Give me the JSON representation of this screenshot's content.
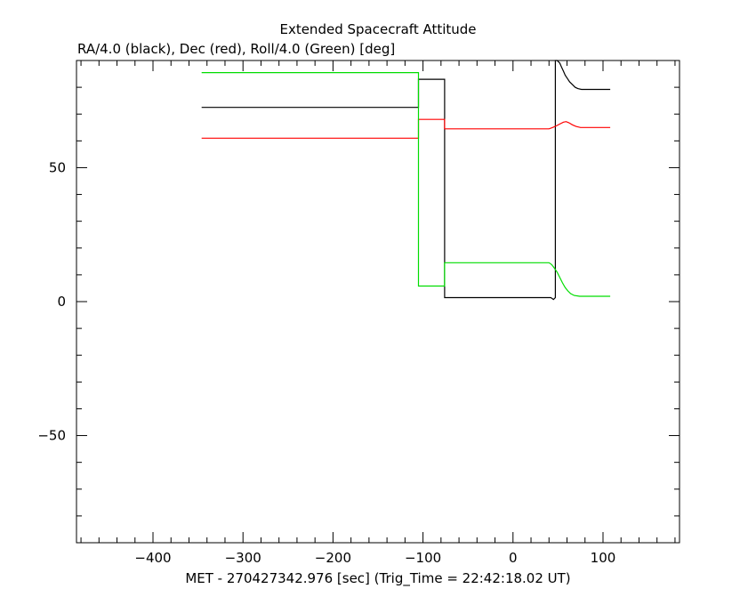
{
  "chart_data": {
    "type": "line",
    "title": "Extended Spacecraft Attitude",
    "subtitle": "RA/4.0 (black), Dec (red), Roll/4.0 (Green) [deg]",
    "xlabel": "MET - 270427342.976 [sec] (Trig_Time = 22:42:18.02 UT)",
    "ylabel": "",
    "xlim": [
      -485,
      185
    ],
    "ylim": [
      -90,
      90
    ],
    "xticks": [
      -400,
      -300,
      -200,
      -100,
      0,
      100
    ],
    "yticks": [
      -50,
      0,
      50
    ],
    "grid": false,
    "series": [
      {
        "color": "#000000",
        "points": [
          [
            -346,
            72.5
          ],
          [
            -105,
            72.5
          ],
          [
            -105,
            83
          ],
          [
            -76,
            83
          ],
          [
            -76,
            1.5
          ],
          [
            42,
            1.5
          ],
          [
            45,
            0.8
          ],
          [
            47,
            1.5
          ],
          [
            47,
            90
          ],
          [
            49,
            90
          ],
          [
            52,
            89
          ],
          [
            54,
            87.5
          ],
          [
            56,
            86
          ],
          [
            58,
            84.5
          ],
          [
            61,
            83
          ],
          [
            63,
            82
          ],
          [
            66,
            81
          ],
          [
            69,
            80
          ],
          [
            72,
            79.5
          ],
          [
            76,
            79.2
          ],
          [
            108,
            79.2
          ]
        ]
      },
      {
        "color": "#ff0000",
        "points": [
          [
            -346,
            61
          ],
          [
            -105,
            61
          ],
          [
            -105,
            68
          ],
          [
            -76,
            68
          ],
          [
            -76,
            64.5
          ],
          [
            40,
            64.5
          ],
          [
            44,
            65
          ],
          [
            48,
            65.6
          ],
          [
            52,
            66.3
          ],
          [
            56,
            67
          ],
          [
            59,
            67.2
          ],
          [
            62,
            66.8
          ],
          [
            66,
            66
          ],
          [
            70,
            65.4
          ],
          [
            75,
            65
          ],
          [
            108,
            65
          ]
        ]
      },
      {
        "color": "#00dd00",
        "points": [
          [
            -346,
            85.5
          ],
          [
            -105,
            85.5
          ],
          [
            -105,
            5.8
          ],
          [
            -76,
            5.8
          ],
          [
            -76,
            14.5
          ],
          [
            40,
            14.5
          ],
          [
            43,
            13.8
          ],
          [
            46,
            12.5
          ],
          [
            49,
            11
          ],
          [
            52,
            9
          ],
          [
            55,
            7
          ],
          [
            58,
            5.2
          ],
          [
            61,
            4
          ],
          [
            64,
            3
          ],
          [
            68,
            2.3
          ],
          [
            74,
            2
          ],
          [
            108,
            2
          ]
        ]
      }
    ]
  }
}
